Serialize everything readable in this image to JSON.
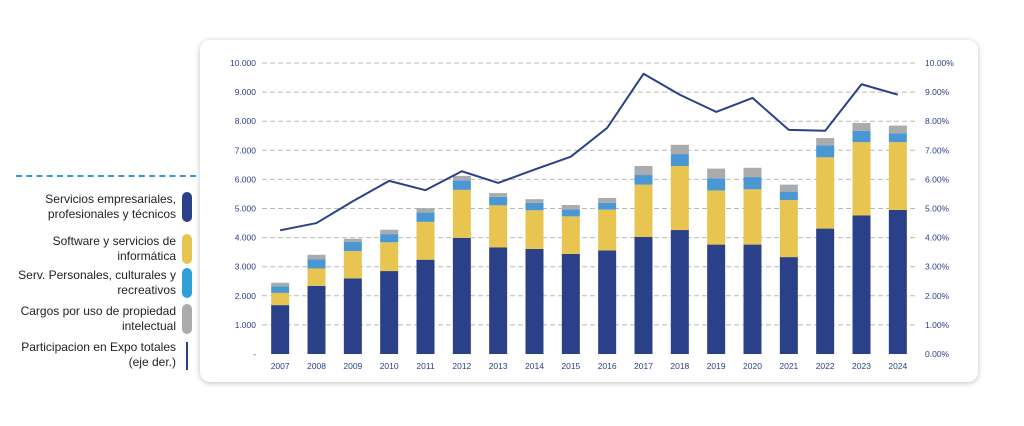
{
  "chart_data": {
    "type": "bar",
    "stacked": true,
    "categories": [
      "2007",
      "2008",
      "2009",
      "2010",
      "2011",
      "2012",
      "2013",
      "2014",
      "2015",
      "2016",
      "2017",
      "2018",
      "2019",
      "2020",
      "2021",
      "2022",
      "2023",
      "2024"
    ],
    "series": [
      {
        "name": "Servicios empresariales, profesionales y técnicos",
        "color": "#2a4189",
        "values": [
          1680,
          2340,
          2600,
          2850,
          3240,
          3990,
          3660,
          3610,
          3440,
          3560,
          4020,
          4260,
          3760,
          3760,
          3330,
          4310,
          4760,
          4950
        ]
      },
      {
        "name": "Software y servicios de informática",
        "color": "#e8c450",
        "values": [
          420,
          600,
          940,
          990,
          1300,
          1650,
          1450,
          1330,
          1290,
          1400,
          1800,
          2200,
          1860,
          1900,
          1960,
          2450,
          2520,
          2330
        ]
      },
      {
        "name": "Serv. Personales, culturales y recreativos",
        "color": "#4b97d3",
        "values": [
          230,
          320,
          310,
          280,
          320,
          330,
          290,
          260,
          240,
          230,
          330,
          410,
          420,
          420,
          290,
          410,
          390,
          300
        ]
      },
      {
        "name": "Cargos por uso de propiedad intelectual",
        "color": "#aaabad",
        "values": [
          120,
          150,
          110,
          150,
          150,
          150,
          130,
          120,
          150,
          170,
          310,
          320,
          330,
          320,
          240,
          250,
          270,
          270
        ]
      }
    ],
    "line": {
      "name": "Participacion en Expo totales (eje der.)",
      "color": "#2a4189",
      "values": [
        4.25,
        4.5,
        5.25,
        5.95,
        5.63,
        6.28,
        5.88,
        6.34,
        6.78,
        7.77,
        9.63,
        8.91,
        8.32,
        8.8,
        7.7,
        7.67,
        9.27,
        8.91
      ]
    },
    "y_left": {
      "ticks": [
        "-",
        "1.000",
        "2.000",
        "3.000",
        "4.000",
        "5.000",
        "6.000",
        "7.000",
        "8.000",
        "9.000",
        "10.000"
      ],
      "min": 0,
      "max": 10000
    },
    "y_right": {
      "ticks": [
        "0.00%",
        "1.00%",
        "2.00%",
        "3.00%",
        "4.00%",
        "5.00%",
        "6.00%",
        "7.00%",
        "8.00%",
        "9.00%",
        "10.00%"
      ],
      "min": 0,
      "max": 10
    },
    "grid": true,
    "legend_position": "left"
  },
  "legend": [
    {
      "label": "Servicios empresariales, profesionales y técnicos",
      "color": "#2a4189",
      "kind": "bar"
    },
    {
      "label": "Software y servicios de informática",
      "color": "#e8c450",
      "kind": "bar"
    },
    {
      "label": "Serv. Personales, culturales y recreativos",
      "color": "#2f9fd9",
      "kind": "bar"
    },
    {
      "label": "Cargos por uso de propiedad intelectual",
      "color": "#aaabad",
      "kind": "bar"
    },
    {
      "label": "Participacion en Expo totales (eje der.)",
      "color": "#2a4189",
      "kind": "line"
    }
  ]
}
